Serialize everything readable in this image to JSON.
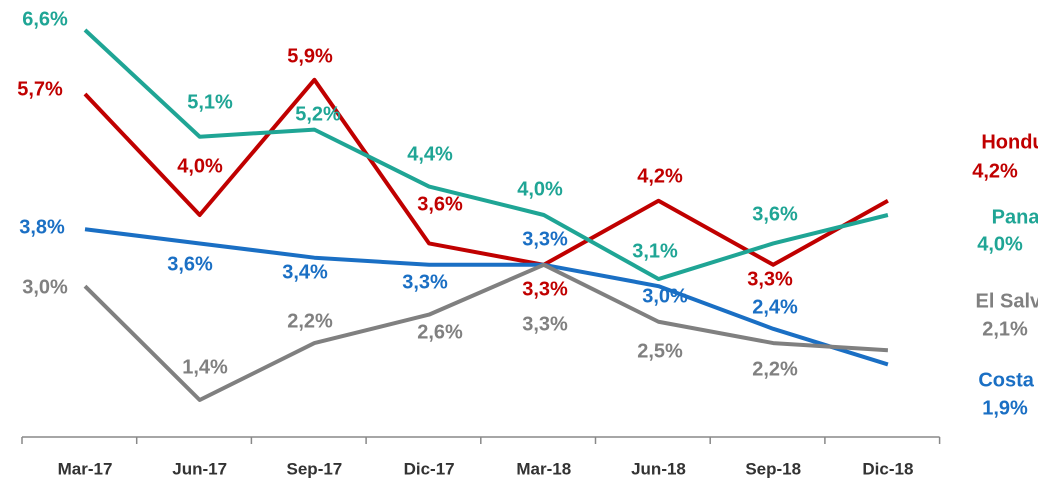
{
  "chart_data": {
    "type": "line",
    "categories": [
      "Mar-17",
      "Jun-17",
      "Sep-17",
      "Dic-17",
      "Mar-18",
      "Jun-18",
      "Sep-18",
      "Dic-18"
    ],
    "series": [
      {
        "name": "Honduras",
        "color": "#c00000",
        "values": [
          5.7,
          4.0,
          5.9,
          3.6,
          3.3,
          4.2,
          3.3,
          4.2
        ],
        "value_labels": [
          "5,7%",
          "4,0%",
          "5,9%",
          "3,6%",
          "3,3%",
          "4,2%",
          "3,3%",
          "4,2%"
        ]
      },
      {
        "name": "Panamá",
        "color": "#1fa595",
        "values": [
          6.6,
          5.1,
          5.2,
          4.4,
          4.0,
          3.1,
          3.6,
          4.0
        ],
        "value_labels": [
          "6,6%",
          "5,1%",
          "5,2%",
          "4,4%",
          "4,0%",
          "3,1%",
          "3,6%",
          "4,0%"
        ]
      },
      {
        "name": "Costa Rica",
        "color": "#1a6fc4",
        "values": [
          3.8,
          3.6,
          3.4,
          3.3,
          3.3,
          3.0,
          2.4,
          1.9
        ],
        "value_labels": [
          "3,8%",
          "3,6%",
          "3,4%",
          "3,3%",
          "3,3%",
          "3,0%",
          "2,4%",
          "1,9%"
        ]
      },
      {
        "name": "El Salvador",
        "color": "#808080",
        "values": [
          3.0,
          1.4,
          2.2,
          2.6,
          3.3,
          2.5,
          2.2,
          2.1
        ],
        "value_labels": [
          "3,0%",
          "1,4%",
          "2,2%",
          "2,6%",
          "3,3%",
          "2,5%",
          "2,2%",
          "2,1%"
        ]
      }
    ]
  }
}
